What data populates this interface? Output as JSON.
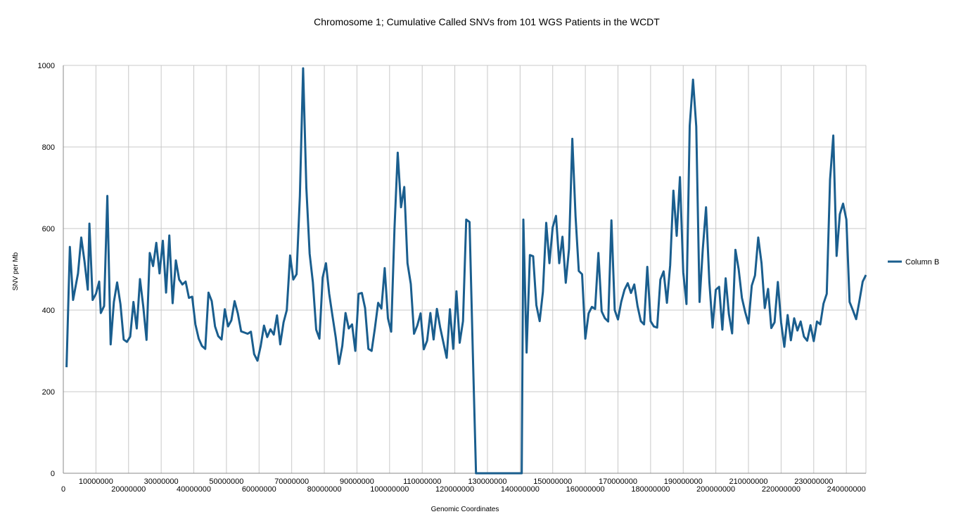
{
  "chart_data": {
    "type": "line",
    "title": "Chromosome 1; Cumulative Called SNVs from 101 WGS Patients in the WCDT",
    "xlabel": "Genomic  Coordinates",
    "ylabel": "SNV  per  Mb",
    "xlim": [
      0,
      246000000
    ],
    "ylim": [
      0,
      1000
    ],
    "yticks": [
      0,
      200,
      400,
      600,
      800,
      1000
    ],
    "xticks": [
      0,
      10000000,
      20000000,
      30000000,
      40000000,
      50000000,
      60000000,
      70000000,
      80000000,
      90000000,
      100000000,
      110000000,
      120000000,
      130000000,
      140000000,
      150000000,
      160000000,
      170000000,
      180000000,
      190000000,
      200000000,
      210000000,
      220000000,
      230000000,
      240000000
    ],
    "xtick_labels": [
      "0",
      "10000000",
      "20000000",
      "30000000",
      "40000000",
      "50000000",
      "60000000",
      "70000000",
      "80000000",
      "90000000",
      "100000000",
      "110000000",
      "120000000",
      "130000000",
      "140000000",
      "150000000",
      "160000000",
      "170000000",
      "180000000",
      "190000000",
      "200000000",
      "210000000",
      "220000000",
      "230000000",
      "240000000"
    ],
    "ytick_labels": [
      "0",
      "200",
      "400",
      "600",
      "800",
      "1000"
    ],
    "grid": true,
    "legend_position": "right",
    "series": [
      {
        "name": "Column  B",
        "color": "#1a5e8e",
        "points": [
          [
            1000000,
            260
          ],
          [
            2000000,
            555
          ],
          [
            3000000,
            425
          ],
          [
            4500000,
            490
          ],
          [
            5500000,
            578
          ],
          [
            6500000,
            520
          ],
          [
            7500000,
            450
          ],
          [
            8000000,
            612
          ],
          [
            9000000,
            425
          ],
          [
            10000000,
            440
          ],
          [
            11000000,
            470
          ],
          [
            11500000,
            393
          ],
          [
            12500000,
            410
          ],
          [
            13500000,
            680
          ],
          [
            14500000,
            316
          ],
          [
            15500000,
            420
          ],
          [
            16500000,
            468
          ],
          [
            17500000,
            415
          ],
          [
            18500000,
            328
          ],
          [
            19500000,
            322
          ],
          [
            20500000,
            335
          ],
          [
            21500000,
            420
          ],
          [
            22500000,
            355
          ],
          [
            23500000,
            476
          ],
          [
            24500000,
            410
          ],
          [
            25500000,
            327
          ],
          [
            26500000,
            540
          ],
          [
            27500000,
            508
          ],
          [
            28500000,
            565
          ],
          [
            29500000,
            490
          ],
          [
            30500000,
            570
          ],
          [
            31500000,
            443
          ],
          [
            32500000,
            583
          ],
          [
            33500000,
            417
          ],
          [
            34500000,
            522
          ],
          [
            35500000,
            475
          ],
          [
            36500000,
            463
          ],
          [
            37500000,
            470
          ],
          [
            38500000,
            430
          ],
          [
            39500000,
            433
          ],
          [
            40500000,
            365
          ],
          [
            41500000,
            330
          ],
          [
            42500000,
            312
          ],
          [
            43500000,
            305
          ],
          [
            44500000,
            443
          ],
          [
            45500000,
            422
          ],
          [
            46500000,
            360
          ],
          [
            47500000,
            336
          ],
          [
            48500000,
            328
          ],
          [
            49500000,
            402
          ],
          [
            50500000,
            360
          ],
          [
            51500000,
            375
          ],
          [
            52500000,
            422
          ],
          [
            53500000,
            392
          ],
          [
            54500000,
            348
          ],
          [
            55500000,
            345
          ],
          [
            56500000,
            342
          ],
          [
            57500000,
            347
          ],
          [
            58500000,
            292
          ],
          [
            59500000,
            276
          ],
          [
            60500000,
            312
          ],
          [
            61500000,
            362
          ],
          [
            62500000,
            334
          ],
          [
            63500000,
            353
          ],
          [
            64500000,
            340
          ],
          [
            65500000,
            387
          ],
          [
            66500000,
            316
          ],
          [
            67500000,
            370
          ],
          [
            68500000,
            400
          ],
          [
            69500000,
            534
          ],
          [
            70500000,
            475
          ],
          [
            71500000,
            488
          ],
          [
            72500000,
            680
          ],
          [
            73500000,
            993
          ],
          [
            74500000,
            700
          ],
          [
            75500000,
            538
          ],
          [
            76500000,
            468
          ],
          [
            77500000,
            352
          ],
          [
            78500000,
            330
          ],
          [
            79500000,
            480
          ],
          [
            80500000,
            515
          ],
          [
            81500000,
            440
          ],
          [
            82500000,
            385
          ],
          [
            83500000,
            333
          ],
          [
            84500000,
            268
          ],
          [
            85500000,
            312
          ],
          [
            86500000,
            393
          ],
          [
            87500000,
            355
          ],
          [
            88500000,
            365
          ],
          [
            89500000,
            300
          ],
          [
            90500000,
            440
          ],
          [
            91500000,
            442
          ],
          [
            92500000,
            405
          ],
          [
            93500000,
            305
          ],
          [
            94500000,
            300
          ],
          [
            95500000,
            355
          ],
          [
            96500000,
            418
          ],
          [
            97500000,
            404
          ],
          [
            98500000,
            503
          ],
          [
            99500000,
            380
          ],
          [
            100500000,
            347
          ],
          [
            101500000,
            600
          ],
          [
            102500000,
            786
          ],
          [
            103500000,
            652
          ],
          [
            104500000,
            702
          ],
          [
            105500000,
            515
          ],
          [
            106500000,
            464
          ],
          [
            107500000,
            342
          ],
          [
            108500000,
            362
          ],
          [
            109500000,
            392
          ],
          [
            110500000,
            304
          ],
          [
            111500000,
            325
          ],
          [
            112500000,
            393
          ],
          [
            113500000,
            328
          ],
          [
            114500000,
            403
          ],
          [
            115500000,
            358
          ],
          [
            116500000,
            320
          ],
          [
            117500000,
            283
          ],
          [
            118500000,
            402
          ],
          [
            119500000,
            305
          ],
          [
            120500000,
            446
          ],
          [
            121500000,
            320
          ],
          [
            122500000,
            373
          ],
          [
            123500000,
            622
          ],
          [
            124500000,
            616
          ],
          [
            125500000,
            300
          ],
          [
            126500000,
            0
          ],
          [
            140500000,
            0
          ],
          [
            141000000,
            622
          ],
          [
            142000000,
            296
          ],
          [
            143000000,
            535
          ],
          [
            144000000,
            532
          ],
          [
            145000000,
            412
          ],
          [
            146000000,
            373
          ],
          [
            147000000,
            445
          ],
          [
            148000000,
            614
          ],
          [
            149000000,
            515
          ],
          [
            150000000,
            603
          ],
          [
            151000000,
            631
          ],
          [
            152000000,
            515
          ],
          [
            153000000,
            580
          ],
          [
            154000000,
            467
          ],
          [
            155000000,
            550
          ],
          [
            156000000,
            820
          ],
          [
            157000000,
            630
          ],
          [
            158000000,
            496
          ],
          [
            159000000,
            488
          ],
          [
            160000000,
            330
          ],
          [
            161000000,
            392
          ],
          [
            162000000,
            408
          ],
          [
            163000000,
            403
          ],
          [
            164000000,
            540
          ],
          [
            165000000,
            397
          ],
          [
            166000000,
            380
          ],
          [
            167000000,
            372
          ],
          [
            168000000,
            620
          ],
          [
            169000000,
            400
          ],
          [
            170000000,
            377
          ],
          [
            171000000,
            420
          ],
          [
            172000000,
            450
          ],
          [
            173000000,
            466
          ],
          [
            174000000,
            442
          ],
          [
            175000000,
            463
          ],
          [
            176000000,
            410
          ],
          [
            177000000,
            373
          ],
          [
            178000000,
            365
          ],
          [
            179000000,
            506
          ],
          [
            180000000,
            373
          ],
          [
            181000000,
            360
          ],
          [
            182000000,
            357
          ],
          [
            183000000,
            475
          ],
          [
            184000000,
            495
          ],
          [
            185000000,
            418
          ],
          [
            186000000,
            510
          ],
          [
            187000000,
            693
          ],
          [
            188000000,
            582
          ],
          [
            189000000,
            726
          ],
          [
            190000000,
            493
          ],
          [
            191000000,
            415
          ],
          [
            192000000,
            852
          ],
          [
            193000000,
            965
          ],
          [
            194000000,
            850
          ],
          [
            195000000,
            420
          ],
          [
            196000000,
            550
          ],
          [
            197000000,
            652
          ],
          [
            198000000,
            470
          ],
          [
            199000000,
            357
          ],
          [
            200000000,
            450
          ],
          [
            201000000,
            457
          ],
          [
            202000000,
            352
          ],
          [
            203000000,
            478
          ],
          [
            204000000,
            390
          ],
          [
            205000000,
            343
          ],
          [
            206000000,
            548
          ],
          [
            207000000,
            500
          ],
          [
            208000000,
            430
          ],
          [
            209000000,
            395
          ],
          [
            210000000,
            367
          ],
          [
            211000000,
            460
          ],
          [
            212000000,
            485
          ],
          [
            213000000,
            578
          ],
          [
            214000000,
            515
          ],
          [
            215000000,
            405
          ],
          [
            216000000,
            452
          ],
          [
            217000000,
            356
          ],
          [
            218000000,
            370
          ],
          [
            219000000,
            469
          ],
          [
            220000000,
            370
          ],
          [
            221000000,
            310
          ],
          [
            222000000,
            388
          ],
          [
            223000000,
            326
          ],
          [
            224000000,
            380
          ],
          [
            225000000,
            350
          ],
          [
            226000000,
            372
          ],
          [
            227000000,
            335
          ],
          [
            228000000,
            325
          ],
          [
            229000000,
            363
          ],
          [
            230000000,
            324
          ],
          [
            231000000,
            372
          ],
          [
            232000000,
            365
          ],
          [
            233000000,
            416
          ],
          [
            234000000,
            440
          ],
          [
            235000000,
            720
          ],
          [
            236000000,
            828
          ],
          [
            237000000,
            533
          ],
          [
            238000000,
            635
          ],
          [
            239000000,
            661
          ],
          [
            240000000,
            622
          ],
          [
            241000000,
            420
          ],
          [
            242000000,
            400
          ],
          [
            243000000,
            378
          ],
          [
            244000000,
            422
          ],
          [
            245000000,
            470
          ],
          [
            246000000,
            486
          ]
        ]
      }
    ]
  }
}
